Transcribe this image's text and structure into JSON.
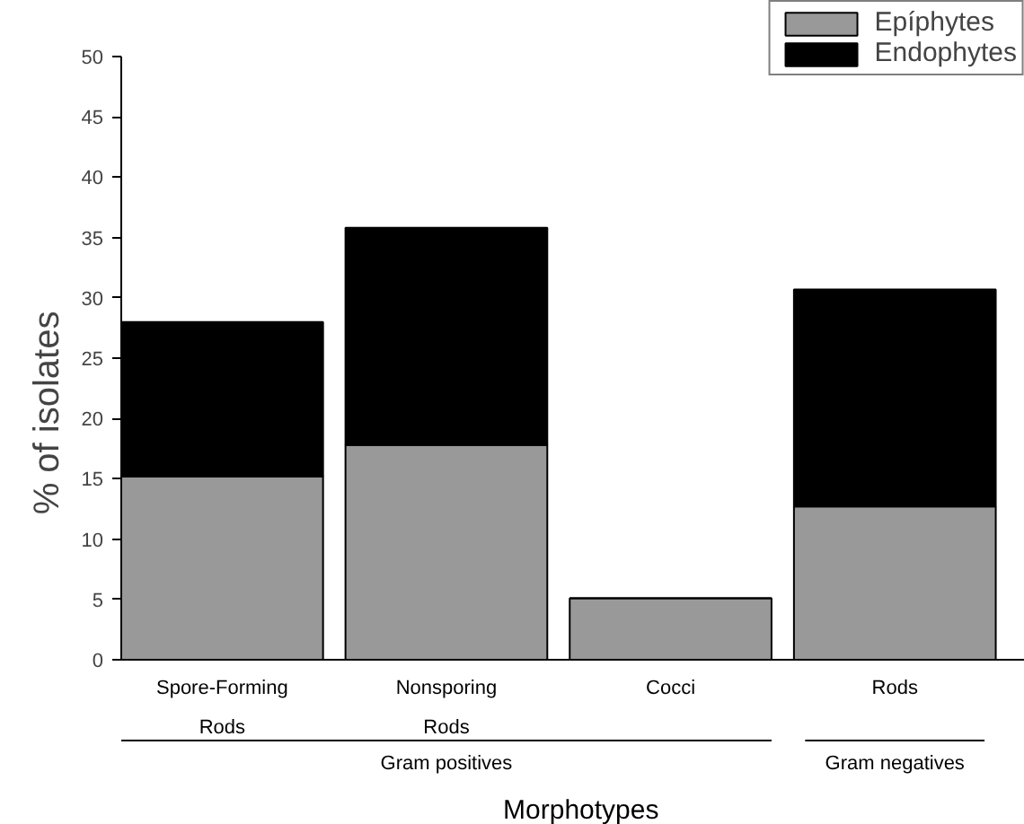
{
  "chart_data": {
    "type": "bar",
    "stacked": true,
    "xlabel": "Morphotypes",
    "ylabel": "% of isolates",
    "categories": [
      "Spore-Forming Rods",
      "Nonsporing Rods",
      "Cocci",
      "Rods"
    ],
    "series": [
      {
        "name": "Epíphytes",
        "color": "#999999",
        "values": [
          15.2,
          17.8,
          5.1,
          12.7
        ]
      },
      {
        "name": "Endophytes",
        "color": "#000000",
        "values": [
          12.8,
          18.0,
          0,
          18.0
        ]
      }
    ],
    "ylim": [
      0,
      50
    ],
    "yticks": [
      0,
      5,
      10,
      15,
      20,
      25,
      30,
      35,
      40,
      45,
      50
    ],
    "grid": false,
    "legend": "top right",
    "annotations": [
      "Gram positives",
      "Gram negatives"
    ]
  }
}
